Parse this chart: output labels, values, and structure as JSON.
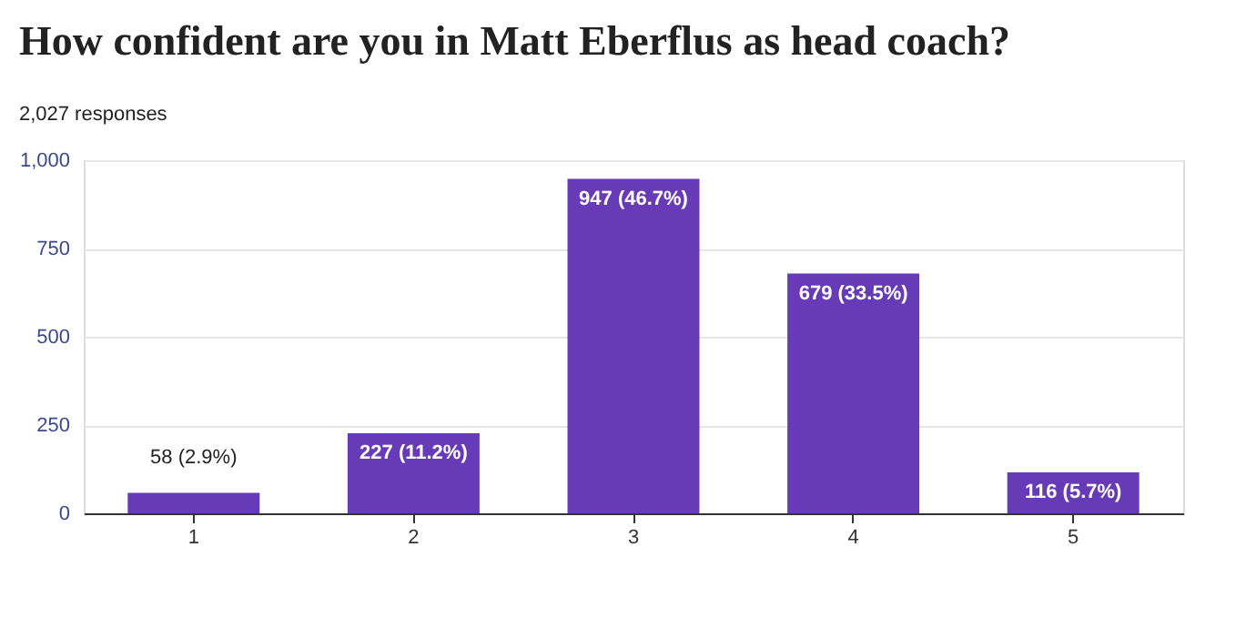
{
  "chart_data": {
    "type": "bar",
    "title": "How confident are you in Matt Eberflus as head coach?",
    "subtitle": "2,027 responses",
    "categories": [
      "1",
      "2",
      "3",
      "4",
      "5"
    ],
    "values": [
      58,
      227,
      947,
      679,
      116
    ],
    "value_labels": [
      "58 (2.9%)",
      "227 (11.2%)",
      "947 (46.7%)",
      "679 (33.5%)",
      "116 (5.7%)"
    ],
    "color": "#673ab7",
    "ylim": [
      0,
      1000
    ],
    "yticks": [
      0,
      250,
      500,
      750,
      {
        "value": 1000,
        "label": "1,000"
      }
    ],
    "grid": "y"
  }
}
